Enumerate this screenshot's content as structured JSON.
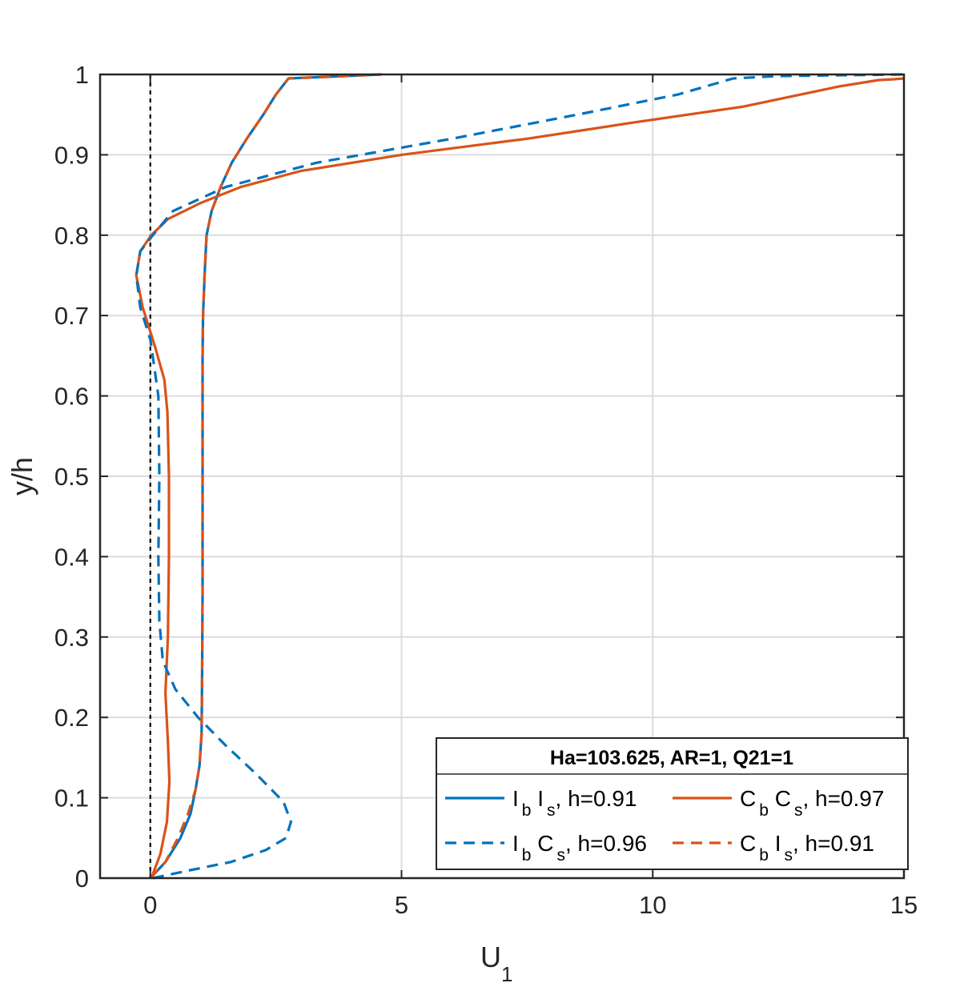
{
  "chart_data": {
    "type": "line",
    "title": "",
    "xlabel": "U",
    "xlabel_sub": "1",
    "ylabel": "y/h",
    "xlim": [
      -1,
      15
    ],
    "ylim": [
      0,
      1
    ],
    "xticks": [
      0,
      5,
      10,
      15
    ],
    "yticks": [
      0,
      0.1,
      0.2,
      0.3,
      0.4,
      0.5,
      0.6,
      0.7,
      0.8,
      0.9,
      1
    ],
    "xtick_labels": [
      "0",
      "5",
      "10",
      "15"
    ],
    "ytick_labels": [
      "0",
      "0.1",
      "0.2",
      "0.3",
      "0.4",
      "0.5",
      "0.6",
      "0.7",
      "0.8",
      "0.9",
      "1"
    ],
    "grid": true,
    "reference_line": {
      "x": 0,
      "style": "dotted",
      "color": "#000000"
    },
    "legend": {
      "title": "Ha=103.625, AR=1, Q21=1",
      "placement": "bottom-right",
      "columns": 2
    },
    "series": [
      {
        "name": "I_b I_s, h=0.91",
        "label_main_1": "I",
        "label_sub_1": "b",
        "label_main_2": "I",
        "label_sub_2": "s",
        "label_suffix": ", h=0.91",
        "color": "#0072BD",
        "dash": "solid",
        "points": [
          [
            0,
            0
          ],
          [
            0.3,
            0.02
          ],
          [
            0.6,
            0.05
          ],
          [
            0.8,
            0.08
          ],
          [
            0.9,
            0.11
          ],
          [
            0.98,
            0.14
          ],
          [
            1.02,
            0.18
          ],
          [
            1.03,
            0.25
          ],
          [
            1.04,
            0.35
          ],
          [
            1.04,
            0.45
          ],
          [
            1.04,
            0.55
          ],
          [
            1.04,
            0.65
          ],
          [
            1.05,
            0.7
          ],
          [
            1.08,
            0.75
          ],
          [
            1.12,
            0.8
          ],
          [
            1.22,
            0.83
          ],
          [
            1.4,
            0.86
          ],
          [
            1.62,
            0.89
          ],
          [
            1.92,
            0.92
          ],
          [
            2.25,
            0.95
          ],
          [
            2.5,
            0.975
          ],
          [
            2.75,
            0.995
          ],
          [
            3.5,
            0.997
          ],
          [
            4.6,
            1.0
          ]
        ]
      },
      {
        "name": "C_b C_s, h=0.97",
        "label_main_1": "C",
        "label_sub_1": "b",
        "label_main_2": "C",
        "label_sub_2": "s",
        "label_suffix": ", h=0.97",
        "color": "#D95319",
        "dash": "solid",
        "points": [
          [
            0.02,
            0
          ],
          [
            0.2,
            0.03
          ],
          [
            0.33,
            0.07
          ],
          [
            0.38,
            0.12
          ],
          [
            0.35,
            0.17
          ],
          [
            0.3,
            0.23
          ],
          [
            0.35,
            0.3
          ],
          [
            0.37,
            0.4
          ],
          [
            0.37,
            0.5
          ],
          [
            0.34,
            0.58
          ],
          [
            0.28,
            0.62
          ],
          [
            0.1,
            0.66
          ],
          [
            -0.15,
            0.71
          ],
          [
            -0.28,
            0.75
          ],
          [
            -0.2,
            0.78
          ],
          [
            0.02,
            0.8
          ],
          [
            0.35,
            0.82
          ],
          [
            1.0,
            0.84
          ],
          [
            1.8,
            0.86
          ],
          [
            3.0,
            0.88
          ],
          [
            5.0,
            0.9
          ],
          [
            7.5,
            0.92
          ],
          [
            9.6,
            0.94
          ],
          [
            11.8,
            0.96
          ],
          [
            13.7,
            0.985
          ],
          [
            14.5,
            0.993
          ],
          [
            14.8,
            0.994
          ],
          [
            15.0,
            0.995
          ]
        ]
      },
      {
        "name": "I_b C_s, h=0.96",
        "label_main_1": "I",
        "label_sub_1": "b",
        "label_main_2": "C",
        "label_sub_2": "s",
        "label_suffix": ", h=0.96",
        "color": "#0072BD",
        "dash": "dashed",
        "points": [
          [
            0.05,
            0
          ],
          [
            0.8,
            0.01
          ],
          [
            1.6,
            0.02
          ],
          [
            2.3,
            0.035
          ],
          [
            2.7,
            0.05
          ],
          [
            2.8,
            0.07
          ],
          [
            2.65,
            0.095
          ],
          [
            2.1,
            0.13
          ],
          [
            1.5,
            0.165
          ],
          [
            0.95,
            0.2
          ],
          [
            0.5,
            0.235
          ],
          [
            0.25,
            0.27
          ],
          [
            0.18,
            0.32
          ],
          [
            0.16,
            0.4
          ],
          [
            0.18,
            0.5
          ],
          [
            0.16,
            0.6
          ],
          [
            0.0,
            0.67
          ],
          [
            -0.2,
            0.71
          ],
          [
            -0.28,
            0.75
          ],
          [
            -0.2,
            0.78
          ],
          [
            0.05,
            0.8
          ],
          [
            0.45,
            0.83
          ],
          [
            1.5,
            0.86
          ],
          [
            3.3,
            0.89
          ],
          [
            6.0,
            0.92
          ],
          [
            8.5,
            0.95
          ],
          [
            10.5,
            0.975
          ],
          [
            11.6,
            0.995
          ],
          [
            12.5,
            0.998
          ],
          [
            15.0,
            1.0
          ]
        ]
      },
      {
        "name": "C_b I_s, h=0.91",
        "label_main_1": "C",
        "label_sub_1": "b",
        "label_main_2": "I",
        "label_sub_2": "s",
        "label_suffix": ", h=0.91",
        "color": "#D95319",
        "dash": "dashed",
        "points": [
          [
            0,
            0
          ],
          [
            0.3,
            0.02
          ],
          [
            0.55,
            0.05
          ],
          [
            0.75,
            0.08
          ],
          [
            0.9,
            0.11
          ],
          [
            0.98,
            0.14
          ],
          [
            1.02,
            0.18
          ],
          [
            1.03,
            0.25
          ],
          [
            1.04,
            0.35
          ],
          [
            1.04,
            0.45
          ],
          [
            1.04,
            0.55
          ],
          [
            1.04,
            0.65
          ],
          [
            1.05,
            0.7
          ],
          [
            1.08,
            0.75
          ],
          [
            1.12,
            0.8
          ],
          [
            1.22,
            0.83
          ],
          [
            1.4,
            0.86
          ],
          [
            1.62,
            0.89
          ],
          [
            1.92,
            0.92
          ],
          [
            2.25,
            0.95
          ],
          [
            2.5,
            0.975
          ],
          [
            2.75,
            0.995
          ],
          [
            3.5,
            0.997
          ],
          [
            4.6,
            1.0
          ]
        ]
      }
    ]
  }
}
